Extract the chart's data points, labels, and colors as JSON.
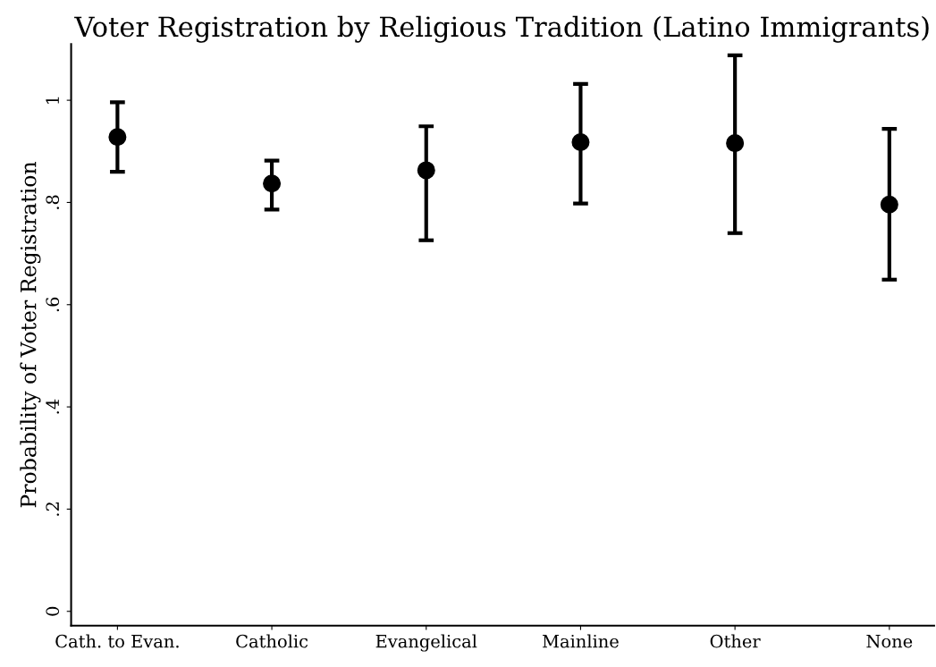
{
  "chart_data": {
    "type": "scatter",
    "title": "Voter Registration by Religious Tradition (Latino Immigrants)",
    "ylabel": "Probability of Voter Registration",
    "categories": [
      "Cath. to Evan.",
      "Catholic",
      "Evangelical",
      "Mainline",
      "Other",
      "None"
    ],
    "series": [
      {
        "color": "#000000",
        "values": [
          0.928,
          0.837,
          0.863,
          0.918,
          0.916,
          0.796
        ],
        "errors": [
          [
            0.86,
            0.996
          ],
          [
            0.786,
            0.882
          ],
          [
            0.726,
            0.949
          ],
          [
            0.798,
            1.032
          ],
          [
            0.74,
            1.088
          ],
          [
            0.649,
            0.944
          ]
        ]
      }
    ],
    "ylim": [
      -0.028,
      1.11
    ],
    "yticks": [
      {
        "value": 0,
        "label": "0"
      },
      {
        "value": 0.2,
        "label": ".2"
      },
      {
        "value": 0.4,
        "label": ".4"
      },
      {
        "value": 0.6,
        "label": ".6"
      },
      {
        "value": 0.8,
        "label": ".8"
      },
      {
        "value": 1,
        "label": "1"
      }
    ],
    "marker": "circle",
    "grid": false,
    "legend": false
  }
}
